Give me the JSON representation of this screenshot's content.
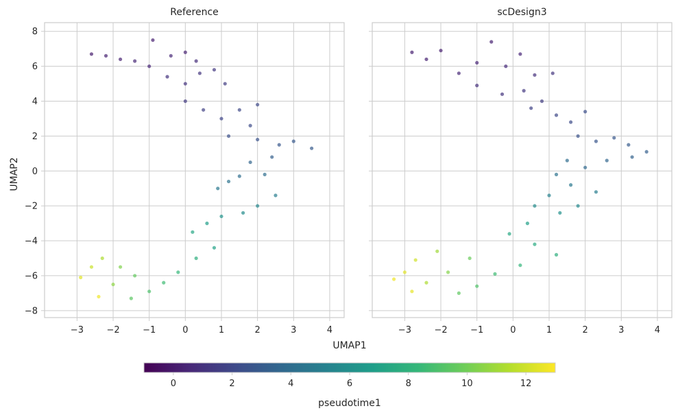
{
  "chart_data": {
    "type": "scatter",
    "colormap": "viridis",
    "shared": {
      "xlabel": "UMAP1",
      "ylabel": "UMAP2",
      "xlim": [
        -3.9,
        4.4
      ],
      "ylim": [
        -8.4,
        8.5
      ],
      "x_ticks": [
        -3,
        -2,
        -1,
        0,
        1,
        2,
        3,
        4
      ],
      "y_ticks": [
        -8,
        -6,
        -4,
        -2,
        0,
        2,
        4,
        6,
        8
      ],
      "x_tick_labels": [
        "−3",
        "−2",
        "−1",
        "0",
        "1",
        "2",
        "3",
        "4"
      ],
      "y_tick_labels": [
        "−8",
        "−6",
        "−4",
        "−2",
        "0",
        "2",
        "4",
        "6",
        "8"
      ],
      "grid": true
    },
    "colorbar": {
      "label": "pseudotime1",
      "range": [
        -1,
        13
      ],
      "ticks": [
        0,
        2,
        4,
        6,
        8,
        10,
        12
      ],
      "tick_labels": [
        "0",
        "2",
        "4",
        "6",
        "8",
        "10",
        "12"
      ],
      "position": "bottom"
    },
    "panels": [
      {
        "title": "Reference",
        "points": [
          [
            -2.6,
            6.7,
            0.1
          ],
          [
            -2.2,
            6.6,
            0.3
          ],
          [
            -1.8,
            6.4,
            0.4
          ],
          [
            -1.4,
            6.3,
            0.6
          ],
          [
            -1.0,
            6.0,
            0.5
          ],
          [
            -0.9,
            7.5,
            0.2
          ],
          [
            -0.4,
            6.6,
            0.6
          ],
          [
            0.0,
            6.8,
            0.4
          ],
          [
            0.3,
            6.3,
            0.8
          ],
          [
            -0.5,
            5.4,
            1.0
          ],
          [
            0.0,
            5.0,
            1.1
          ],
          [
            0.4,
            5.6,
            1.2
          ],
          [
            0.8,
            5.8,
            1.3
          ],
          [
            1.1,
            5.0,
            1.5
          ],
          [
            0.0,
            4.0,
            1.4
          ],
          [
            0.5,
            3.5,
            1.7
          ],
          [
            1.0,
            3.0,
            1.9
          ],
          [
            1.5,
            3.5,
            2.0
          ],
          [
            1.8,
            2.6,
            2.2
          ],
          [
            2.0,
            3.8,
            2.1
          ],
          [
            1.2,
            2.0,
            2.4
          ],
          [
            2.0,
            1.8,
            2.6
          ],
          [
            2.6,
            1.5,
            2.8
          ],
          [
            3.0,
            1.7,
            2.9
          ],
          [
            3.5,
            1.3,
            3.0
          ],
          [
            2.4,
            0.8,
            3.2
          ],
          [
            1.8,
            0.5,
            3.5
          ],
          [
            1.5,
            -0.3,
            4.0
          ],
          [
            1.2,
            -0.6,
            4.3
          ],
          [
            0.9,
            -1.0,
            4.6
          ],
          [
            2.2,
            -0.2,
            4.0
          ],
          [
            2.5,
            -1.4,
            5.0
          ],
          [
            2.0,
            -2.0,
            5.5
          ],
          [
            1.6,
            -2.4,
            5.8
          ],
          [
            1.0,
            -2.6,
            6.2
          ],
          [
            0.6,
            -3.0,
            6.8
          ],
          [
            0.2,
            -3.5,
            7.3
          ],
          [
            0.8,
            -4.4,
            7.0
          ],
          [
            0.3,
            -5.0,
            7.8
          ],
          [
            -0.2,
            -5.8,
            8.3
          ],
          [
            -0.6,
            -6.4,
            8.6
          ],
          [
            -1.0,
            -6.9,
            9.0
          ],
          [
            -1.5,
            -7.3,
            9.4
          ],
          [
            -1.4,
            -6.0,
            9.6
          ],
          [
            -1.8,
            -5.5,
            10.3
          ],
          [
            -2.0,
            -6.5,
            10.6
          ],
          [
            -2.3,
            -5.0,
            11.3
          ],
          [
            -2.6,
            -5.5,
            11.9
          ],
          [
            -2.9,
            -6.1,
            12.4
          ],
          [
            -2.4,
            -7.2,
            12.7
          ]
        ]
      },
      {
        "title": "scDesign3",
        "points": [
          [
            -2.8,
            6.8,
            0.2
          ],
          [
            -2.4,
            6.4,
            0.3
          ],
          [
            -2.0,
            6.9,
            0.2
          ],
          [
            -1.5,
            5.6,
            0.6
          ],
          [
            -1.0,
            6.2,
            0.5
          ],
          [
            -0.6,
            7.4,
            0.3
          ],
          [
            -0.2,
            6.0,
            0.7
          ],
          [
            0.2,
            6.7,
            0.5
          ],
          [
            0.6,
            5.5,
            0.9
          ],
          [
            -1.0,
            4.9,
            0.9
          ],
          [
            -0.3,
            4.4,
            1.1
          ],
          [
            0.3,
            4.6,
            1.3
          ],
          [
            0.8,
            4.0,
            1.5
          ],
          [
            1.1,
            5.6,
            1.2
          ],
          [
            0.5,
            3.6,
            1.8
          ],
          [
            1.2,
            3.2,
            2.0
          ],
          [
            1.6,
            2.8,
            2.2
          ],
          [
            2.0,
            3.4,
            2.3
          ],
          [
            1.8,
            2.0,
            2.5
          ],
          [
            2.3,
            1.7,
            2.7
          ],
          [
            2.8,
            1.9,
            2.8
          ],
          [
            3.2,
            1.5,
            3.0
          ],
          [
            3.7,
            1.1,
            3.2
          ],
          [
            3.3,
            0.8,
            3.4
          ],
          [
            2.6,
            0.6,
            3.6
          ],
          [
            2.0,
            0.2,
            3.8
          ],
          [
            1.5,
            0.6,
            3.9
          ],
          [
            1.2,
            -0.2,
            4.3
          ],
          [
            1.6,
            -0.8,
            4.6
          ],
          [
            2.3,
            -1.2,
            5.0
          ],
          [
            1.0,
            -1.4,
            5.2
          ],
          [
            0.6,
            -2.0,
            5.8
          ],
          [
            1.3,
            -2.4,
            6.1
          ],
          [
            1.8,
            -2.0,
            5.6
          ],
          [
            0.4,
            -3.0,
            6.9
          ],
          [
            -0.1,
            -3.6,
            7.4
          ],
          [
            0.6,
            -4.2,
            7.6
          ],
          [
            1.2,
            -4.8,
            7.8
          ],
          [
            0.2,
            -5.4,
            8.2
          ],
          [
            -0.5,
            -5.9,
            8.6
          ],
          [
            -1.0,
            -6.6,
            9.1
          ],
          [
            -1.5,
            -7.0,
            9.5
          ],
          [
            -1.2,
            -5.0,
            9.8
          ],
          [
            -1.8,
            -5.8,
            10.4
          ],
          [
            -2.1,
            -4.6,
            11.0
          ],
          [
            -2.4,
            -6.4,
            11.3
          ],
          [
            -2.7,
            -5.1,
            12.0
          ],
          [
            -3.0,
            -5.8,
            12.4
          ],
          [
            -3.3,
            -6.2,
            12.7
          ],
          [
            -2.8,
            -6.9,
            12.5
          ]
        ]
      }
    ]
  }
}
